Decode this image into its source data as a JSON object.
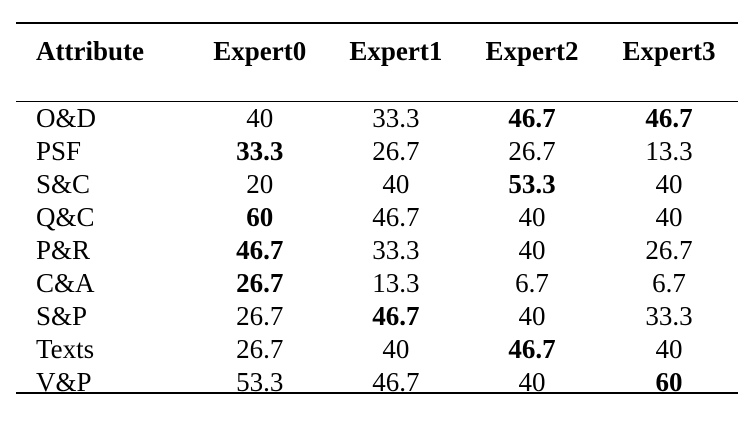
{
  "table": {
    "headers": [
      "Attribute",
      "Expert0",
      "Expert1",
      "Expert2",
      "Expert3"
    ],
    "rows": [
      {
        "attribute": "O&D",
        "values": [
          "40",
          "33.3",
          "46.7",
          "46.7"
        ],
        "bold": [
          false,
          false,
          true,
          true
        ]
      },
      {
        "attribute": "PSF",
        "values": [
          "33.3",
          "26.7",
          "26.7",
          "13.3"
        ],
        "bold": [
          true,
          false,
          false,
          false
        ]
      },
      {
        "attribute": "S&C",
        "values": [
          "20",
          "40",
          "53.3",
          "40"
        ],
        "bold": [
          false,
          false,
          true,
          false
        ]
      },
      {
        "attribute": "Q&C",
        "values": [
          "60",
          "46.7",
          "40",
          "40"
        ],
        "bold": [
          true,
          false,
          false,
          false
        ]
      },
      {
        "attribute": "P&R",
        "values": [
          "46.7",
          "33.3",
          "40",
          "26.7"
        ],
        "bold": [
          true,
          false,
          false,
          false
        ]
      },
      {
        "attribute": "C&A",
        "values": [
          "26.7",
          "13.3",
          "6.7",
          "6.7"
        ],
        "bold": [
          true,
          false,
          false,
          false
        ]
      },
      {
        "attribute": "S&P",
        "values": [
          "26.7",
          "46.7",
          "40",
          "33.3"
        ],
        "bold": [
          false,
          true,
          false,
          false
        ]
      },
      {
        "attribute": "Texts",
        "values": [
          "26.7",
          "40",
          "46.7",
          "40"
        ],
        "bold": [
          false,
          false,
          true,
          false
        ]
      },
      {
        "attribute": "V&P",
        "values": [
          "53.3",
          "46.7",
          "40",
          "60"
        ],
        "bold": [
          false,
          false,
          false,
          true
        ]
      }
    ]
  }
}
